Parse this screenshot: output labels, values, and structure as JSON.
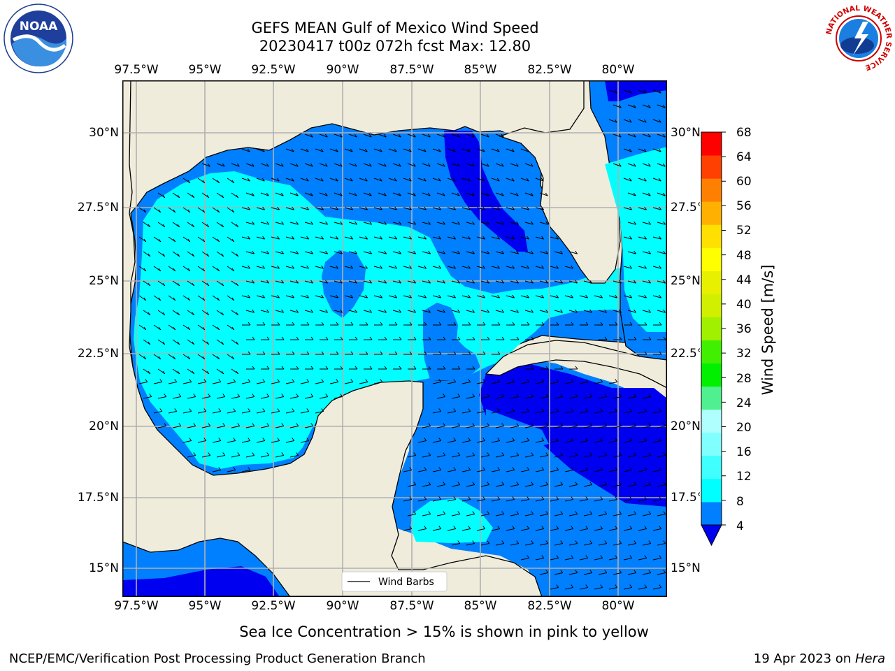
{
  "header": {
    "title_line1": "GEFS MEAN Gulf of Mexico Wind Speed",
    "title_line2": "20230417 t00z 072h fcst   Max: 12.80"
  },
  "logos": {
    "left": {
      "name": "NOAA",
      "ring_text": "NATIONAL OCEANIC AND ATMOSPHERIC ADMINISTRATION · U.S. DEPARTMENT OF COMMERCE"
    },
    "right": {
      "name": "NATIONAL WEATHER SERVICE"
    }
  },
  "map": {
    "longitude_ticks": [
      "97.5°W",
      "95°W",
      "92.5°W",
      "90°W",
      "87.5°W",
      "85°W",
      "82.5°W",
      "80°W"
    ],
    "latitude_ticks_left": [
      "30°N",
      "27.5°N",
      "25°N",
      "22.5°N",
      "20°N",
      "17.5°N",
      "15°N"
    ],
    "latitude_ticks_right": [
      "30°N",
      "27.5°N",
      "25°N",
      "22.5°N",
      "20°N",
      "17.5°N",
      "15°N"
    ],
    "legend_label": "Wind Barbs",
    "colors": {
      "land": "#efecdc",
      "c4_8": "#0080ff",
      "c8_12": "#00ffff",
      "below4": "#0000f0",
      "grid": "#b0b0b0"
    }
  },
  "colorbar": {
    "label": "Wind Speed [m/s]",
    "ticks": [
      "68",
      "64",
      "60",
      "56",
      "52",
      "48",
      "44",
      "40",
      "36",
      "32",
      "28",
      "24",
      "20",
      "16",
      "12",
      "8",
      "4"
    ],
    "colors_bottom_to_top": [
      "#0080ff",
      "#00ffff",
      "#40ffff",
      "#80ffff",
      "#b0ffff",
      "#50f090",
      "#00f000",
      "#40f000",
      "#a0f000",
      "#d0f000",
      "#e8f000",
      "#ffff00",
      "#ffe000",
      "#ffb000",
      "#ff8000",
      "#ff4000",
      "#ff0000"
    ],
    "under_color": "#0000f0"
  },
  "footer": {
    "note": "Sea Ice Concentration > 15% is shown in pink to yellow",
    "left": "NCEP/EMC/Verification Post Processing Product Generation Branch",
    "right_date": "19 Apr 2023 on ",
    "right_host": "Hera"
  }
}
